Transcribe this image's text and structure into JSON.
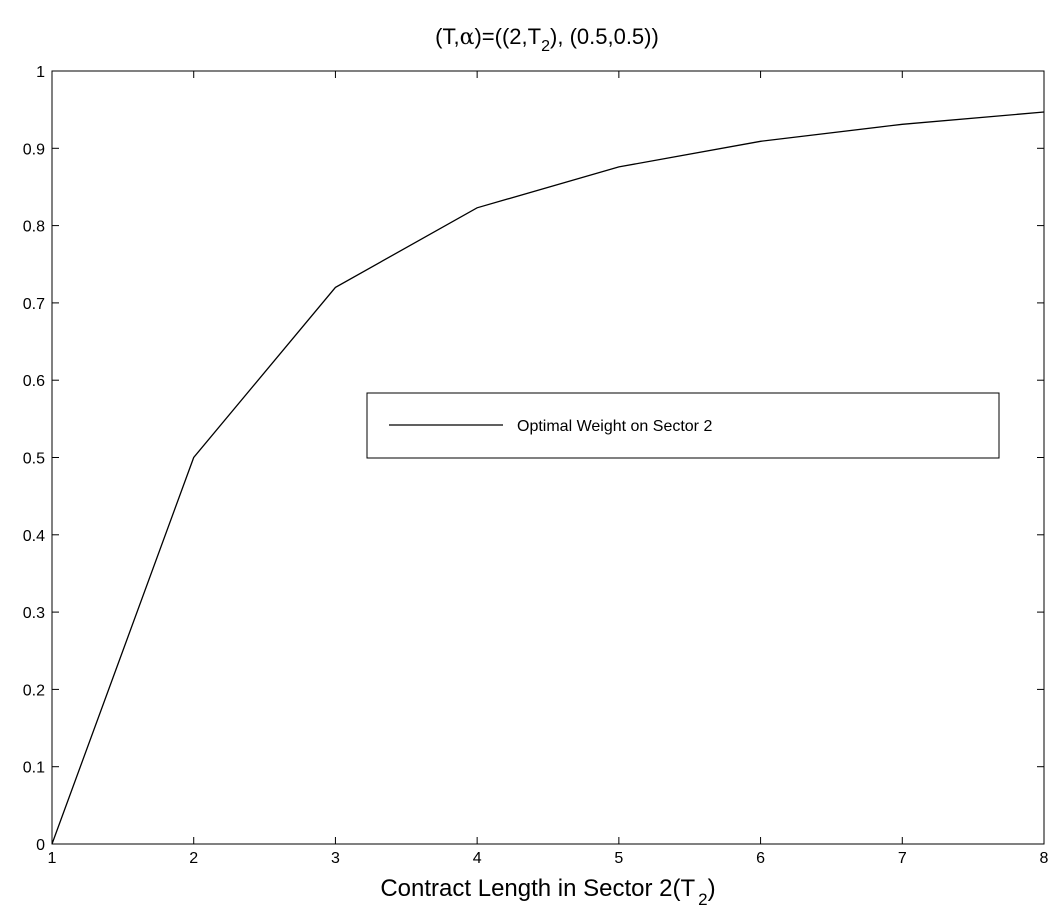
{
  "chart_data": {
    "type": "line",
    "title": {
      "prefix": "(T,",
      "alpha": "α",
      "middle": ")=((2,T",
      "sub": "2",
      "suffix": "), (0.5,0.5))"
    },
    "xlabel": {
      "main": "Contract Length in Sector 2(T",
      "sub": "2",
      "suffix": ")"
    },
    "ylabel": "",
    "xlim": [
      1,
      8
    ],
    "ylim": [
      0,
      1
    ],
    "x_ticks": [
      1,
      2,
      3,
      4,
      5,
      6,
      7,
      8
    ],
    "y_ticks": [
      0,
      0.1,
      0.2,
      0.3,
      0.4,
      0.5,
      0.6,
      0.7,
      0.8,
      0.9,
      1
    ],
    "x_tick_labels": [
      "1",
      "2",
      "3",
      "4",
      "5",
      "6",
      "7",
      "8"
    ],
    "y_tick_labels": [
      "0",
      "0.1",
      "0.2",
      "0.3",
      "0.4",
      "0.5",
      "0.6",
      "0.7",
      "0.8",
      "0.9",
      "1"
    ],
    "grid": false,
    "legend_position": "center-right",
    "series": [
      {
        "name": "Optimal Weight on Sector 2",
        "color": "#000000",
        "x": [
          1,
          2,
          3,
          4,
          5,
          6,
          7,
          8
        ],
        "y": [
          0,
          0.5,
          0.72,
          0.823,
          0.876,
          0.909,
          0.931,
          0.947
        ]
      }
    ]
  }
}
